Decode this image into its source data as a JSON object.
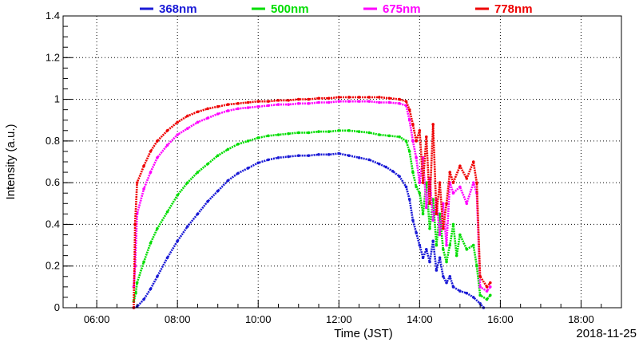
{
  "chart_data": {
    "type": "scatter",
    "xlabel": "Time (JST)",
    "ylabel": "Intensity (a.u.)",
    "date_label": "2018-11-25",
    "xlim": [
      "05:10",
      "19:00"
    ],
    "ylim": [
      0,
      1.4
    ],
    "x_ticks": [
      "06:00",
      "08:00",
      "10:00",
      "12:00",
      "14:00",
      "16:00",
      "18:00"
    ],
    "y_ticks": [
      "0",
      "0.2",
      "0.4",
      "0.6",
      "0.8",
      "1",
      "1.2",
      "1.4"
    ],
    "grid": true,
    "legend_position": "top",
    "series": [
      {
        "name": "368nm",
        "color": "#1a1ad6",
        "points": [
          [
            "06:55",
            0.0
          ],
          [
            "07:00",
            0.005
          ],
          [
            "07:10",
            0.04
          ],
          [
            "07:20",
            0.09
          ],
          [
            "07:30",
            0.15
          ],
          [
            "07:45",
            0.24
          ],
          [
            "08:00",
            0.32
          ],
          [
            "08:15",
            0.39
          ],
          [
            "08:30",
            0.45
          ],
          [
            "08:45",
            0.51
          ],
          [
            "09:00",
            0.56
          ],
          [
            "09:15",
            0.61
          ],
          [
            "09:30",
            0.645
          ],
          [
            "09:45",
            0.67
          ],
          [
            "10:00",
            0.695
          ],
          [
            "10:15",
            0.71
          ],
          [
            "10:30",
            0.72
          ],
          [
            "10:45",
            0.725
          ],
          [
            "11:00",
            0.73
          ],
          [
            "11:15",
            0.73
          ],
          [
            "11:30",
            0.735
          ],
          [
            "11:45",
            0.735
          ],
          [
            "12:00",
            0.74
          ],
          [
            "12:15",
            0.73
          ],
          [
            "12:30",
            0.72
          ],
          [
            "12:45",
            0.71
          ],
          [
            "13:00",
            0.69
          ],
          [
            "13:10",
            0.675
          ],
          [
            "13:20",
            0.655
          ],
          [
            "13:30",
            0.63
          ],
          [
            "13:40",
            0.58
          ],
          [
            "13:45",
            0.52
          ],
          [
            "13:50",
            0.42
          ],
          [
            "13:55",
            0.36
          ],
          [
            "14:00",
            0.3
          ],
          [
            "14:05",
            0.24
          ],
          [
            "14:10",
            0.28
          ],
          [
            "14:15",
            0.22
          ],
          [
            "14:20",
            0.32
          ],
          [
            "14:25",
            0.18
          ],
          [
            "14:30",
            0.24
          ],
          [
            "14:35",
            0.15
          ],
          [
            "14:40",
            0.12
          ],
          [
            "14:45",
            0.15
          ],
          [
            "14:50",
            0.1
          ],
          [
            "15:00",
            0.08
          ],
          [
            "15:10",
            0.07
          ],
          [
            "15:20",
            0.05
          ],
          [
            "15:30",
            0.02
          ],
          [
            "15:35",
            0.0
          ]
        ]
      },
      {
        "name": "500nm",
        "color": "#00dd00",
        "points": [
          [
            "06:55",
            0.03
          ],
          [
            "06:58",
            0.07
          ],
          [
            "07:00",
            0.12
          ],
          [
            "07:10",
            0.22
          ],
          [
            "07:20",
            0.31
          ],
          [
            "07:30",
            0.38
          ],
          [
            "07:45",
            0.46
          ],
          [
            "08:00",
            0.54
          ],
          [
            "08:15",
            0.6
          ],
          [
            "08:30",
            0.65
          ],
          [
            "08:45",
            0.69
          ],
          [
            "09:00",
            0.73
          ],
          [
            "09:15",
            0.76
          ],
          [
            "09:30",
            0.785
          ],
          [
            "09:45",
            0.8
          ],
          [
            "10:00",
            0.815
          ],
          [
            "10:15",
            0.825
          ],
          [
            "10:30",
            0.83
          ],
          [
            "10:45",
            0.835
          ],
          [
            "11:00",
            0.84
          ],
          [
            "11:15",
            0.84
          ],
          [
            "11:30",
            0.845
          ],
          [
            "11:45",
            0.845
          ],
          [
            "12:00",
            0.85
          ],
          [
            "12:15",
            0.85
          ],
          [
            "12:30",
            0.845
          ],
          [
            "12:45",
            0.84
          ],
          [
            "13:00",
            0.83
          ],
          [
            "13:15",
            0.825
          ],
          [
            "13:30",
            0.82
          ],
          [
            "13:40",
            0.8
          ],
          [
            "13:45",
            0.75
          ],
          [
            "13:50",
            0.65
          ],
          [
            "13:55",
            0.58
          ],
          [
            "14:00",
            0.55
          ],
          [
            "14:05",
            0.45
          ],
          [
            "14:10",
            0.6
          ],
          [
            "14:15",
            0.38
          ],
          [
            "14:20",
            0.52
          ],
          [
            "14:25",
            0.3
          ],
          [
            "14:30",
            0.45
          ],
          [
            "14:35",
            0.28
          ],
          [
            "14:40",
            0.22
          ],
          [
            "14:45",
            0.3
          ],
          [
            "14:50",
            0.4
          ],
          [
            "14:55",
            0.25
          ],
          [
            "15:00",
            0.35
          ],
          [
            "15:10",
            0.28
          ],
          [
            "15:20",
            0.3
          ],
          [
            "15:25",
            0.2
          ],
          [
            "15:30",
            0.06
          ],
          [
            "15:40",
            0.04
          ],
          [
            "15:45",
            0.06
          ]
        ]
      },
      {
        "name": "675nm",
        "color": "#ff00ff",
        "points": [
          [
            "06:55",
            0.1
          ],
          [
            "06:57",
            0.2
          ],
          [
            "07:00",
            0.45
          ],
          [
            "07:10",
            0.57
          ],
          [
            "07:20",
            0.65
          ],
          [
            "07:30",
            0.72
          ],
          [
            "07:45",
            0.78
          ],
          [
            "08:00",
            0.83
          ],
          [
            "08:15",
            0.86
          ],
          [
            "08:30",
            0.89
          ],
          [
            "08:45",
            0.91
          ],
          [
            "09:00",
            0.93
          ],
          [
            "09:15",
            0.945
          ],
          [
            "09:30",
            0.955
          ],
          [
            "09:45",
            0.96
          ],
          [
            "10:00",
            0.965
          ],
          [
            "10:15",
            0.97
          ],
          [
            "10:30",
            0.975
          ],
          [
            "10:45",
            0.975
          ],
          [
            "11:00",
            0.98
          ],
          [
            "11:15",
            0.98
          ],
          [
            "11:30",
            0.985
          ],
          [
            "11:45",
            0.985
          ],
          [
            "12:00",
            0.99
          ],
          [
            "12:15",
            0.99
          ],
          [
            "12:30",
            0.99
          ],
          [
            "12:45",
            0.99
          ],
          [
            "13:00",
            0.985
          ],
          [
            "13:15",
            0.985
          ],
          [
            "13:30",
            0.98
          ],
          [
            "13:40",
            0.97
          ],
          [
            "13:45",
            0.9
          ],
          [
            "13:50",
            0.8
          ],
          [
            "13:55",
            0.72
          ],
          [
            "14:00",
            0.6
          ],
          [
            "14:05",
            0.72
          ],
          [
            "14:10",
            0.48
          ],
          [
            "14:15",
            0.62
          ],
          [
            "14:20",
            0.42
          ],
          [
            "14:25",
            0.52
          ],
          [
            "14:30",
            0.35
          ],
          [
            "14:35",
            0.5
          ],
          [
            "14:40",
            0.3
          ],
          [
            "14:45",
            0.6
          ],
          [
            "14:50",
            0.55
          ],
          [
            "15:00",
            0.58
          ],
          [
            "15:10",
            0.5
          ],
          [
            "15:20",
            0.6
          ],
          [
            "15:25",
            0.55
          ],
          [
            "15:30",
            0.1
          ],
          [
            "15:40",
            0.08
          ],
          [
            "15:45",
            0.1
          ]
        ]
      },
      {
        "name": "778nm",
        "color": "#ee0000",
        "points": [
          [
            "06:55",
            0.0
          ],
          [
            "06:57",
            0.4
          ],
          [
            "07:00",
            0.6
          ],
          [
            "07:10",
            0.68
          ],
          [
            "07:20",
            0.75
          ],
          [
            "07:30",
            0.8
          ],
          [
            "07:45",
            0.85
          ],
          [
            "08:00",
            0.89
          ],
          [
            "08:15",
            0.92
          ],
          [
            "08:30",
            0.94
          ],
          [
            "08:45",
            0.955
          ],
          [
            "09:00",
            0.965
          ],
          [
            "09:15",
            0.975
          ],
          [
            "09:30",
            0.98
          ],
          [
            "09:45",
            0.985
          ],
          [
            "10:00",
            0.99
          ],
          [
            "10:15",
            0.99
          ],
          [
            "10:30",
            0.995
          ],
          [
            "10:45",
            0.995
          ],
          [
            "11:00",
            1.0
          ],
          [
            "11:15",
            1.0
          ],
          [
            "11:30",
            1.005
          ],
          [
            "11:45",
            1.005
          ],
          [
            "12:00",
            1.01
          ],
          [
            "12:15",
            1.01
          ],
          [
            "12:30",
            1.01
          ],
          [
            "12:45",
            1.01
          ],
          [
            "13:00",
            1.01
          ],
          [
            "13:15",
            1.005
          ],
          [
            "13:30",
            1.0
          ],
          [
            "13:40",
            0.99
          ],
          [
            "13:45",
            0.95
          ],
          [
            "13:50",
            0.88
          ],
          [
            "13:55",
            0.8
          ],
          [
            "14:00",
            0.85
          ],
          [
            "14:05",
            0.6
          ],
          [
            "14:10",
            0.82
          ],
          [
            "14:15",
            0.5
          ],
          [
            "14:20",
            0.88
          ],
          [
            "14:25",
            0.45
          ],
          [
            "14:30",
            0.6
          ],
          [
            "14:35",
            0.38
          ],
          [
            "14:40",
            0.5
          ],
          [
            "14:45",
            0.65
          ],
          [
            "14:50",
            0.6
          ],
          [
            "15:00",
            0.68
          ],
          [
            "15:10",
            0.62
          ],
          [
            "15:20",
            0.7
          ],
          [
            "15:25",
            0.6
          ],
          [
            "15:30",
            0.15
          ],
          [
            "15:40",
            0.1
          ],
          [
            "15:45",
            0.12
          ]
        ]
      }
    ]
  }
}
